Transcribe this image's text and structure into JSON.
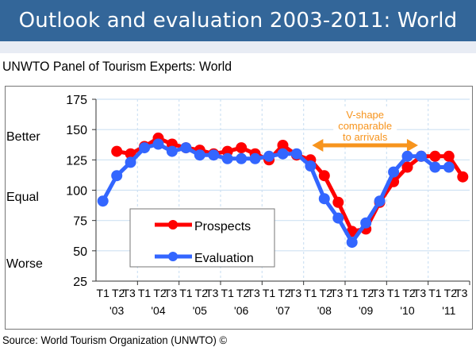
{
  "header": {
    "title": "Outlook and evaluation 2003-2011: World"
  },
  "subtitle": "UNWTO Panel of Tourism Experts: World",
  "source": "Source: World Tourism Organization (UNWTO) ©",
  "colors": {
    "header_bg": "#336699",
    "prospects": "#ff0000",
    "evaluation": "#3366ff",
    "annotation": "#f7941d",
    "grid": "#cfe2f3"
  },
  "chart_data": {
    "type": "line",
    "title": "UNWTO Panel of Tourism Experts: World",
    "xlabel": "",
    "ylabel": "",
    "ylim": [
      25,
      175
    ],
    "yticks": [
      25,
      50,
      75,
      100,
      125,
      150,
      175
    ],
    "side_labels": [
      {
        "text": "Better",
        "value": 145
      },
      {
        "text": "Equal",
        "value": 95
      },
      {
        "text": "Worse",
        "value": 40
      }
    ],
    "grid": true,
    "legend": {
      "placement": "bottom-left",
      "entries": [
        "Prospects",
        "Evaluation"
      ]
    },
    "years": [
      "'03",
      "'04",
      "'05",
      "'06",
      "'07",
      "'08",
      "'09",
      "'10",
      "'11"
    ],
    "periods": [
      "T1",
      "T2",
      "T3"
    ],
    "categories": [
      "2003 T1",
      "2003 T2",
      "2003 T3",
      "2004 T1",
      "2004 T2",
      "2004 T3",
      "2005 T1",
      "2005 T2",
      "2005 T3",
      "2006 T1",
      "2006 T2",
      "2006 T3",
      "2007 T1",
      "2007 T2",
      "2007 T3",
      "2008 T1",
      "2008 T2",
      "2008 T3",
      "2009 T1",
      "2009 T2",
      "2009 T3",
      "2010 T1",
      "2010 T2",
      "2010 T3",
      "2011 T1",
      "2011 T2",
      "2011 T3"
    ],
    "series": [
      {
        "name": "Prospects",
        "color": "#ff0000",
        "values": [
          null,
          132,
          130,
          136,
          143,
          138,
          135,
          133,
          130,
          132,
          135,
          130,
          125,
          137,
          129,
          125,
          112,
          90,
          66,
          68,
          90,
          107,
          119,
          128,
          128,
          128,
          111
        ]
      },
      {
        "name": "Evaluation",
        "color": "#3366ff",
        "values": [
          91,
          112,
          123,
          135,
          138,
          132,
          135,
          129,
          129,
          126,
          126,
          126,
          128,
          130,
          130,
          120,
          93,
          77,
          57,
          73,
          91,
          115,
          128,
          128,
          119,
          119,
          null
        ]
      }
    ],
    "annotation": {
      "lines": [
        "V-shape",
        "comparable",
        "to arrivals"
      ],
      "span": [
        "2008 T1",
        "2010 T3"
      ]
    }
  }
}
